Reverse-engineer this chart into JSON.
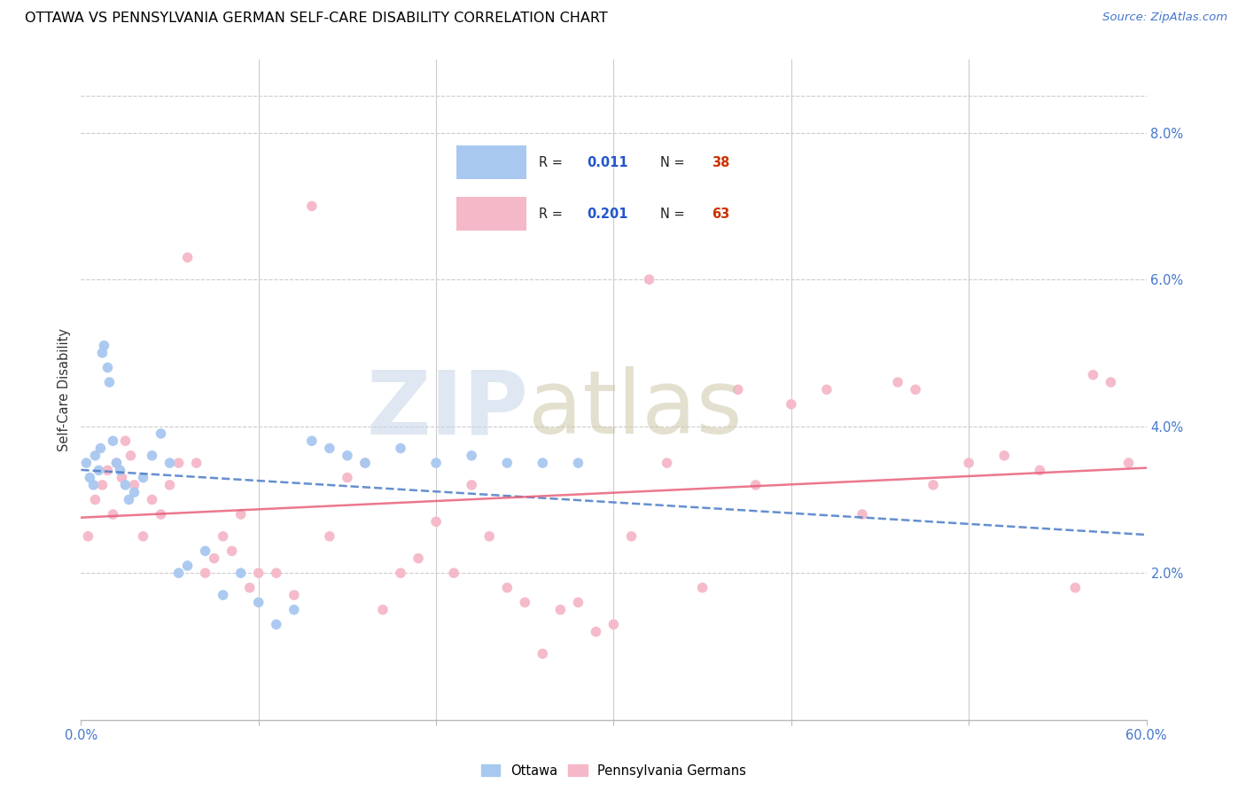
{
  "title": "OTTAWA VS PENNSYLVANIA GERMAN SELF-CARE DISABILITY CORRELATION CHART",
  "source": "Source: ZipAtlas.com",
  "ylabel": "Self-Care Disability",
  "ottawa_color": "#a8c8f0",
  "pg_color": "#f5b8c8",
  "ottawa_line_color": "#4a7cc7",
  "pg_line_color": "#e8607a",
  "watermark_zip_color": "#c8d8ee",
  "watermark_atlas_color": "#d8d0b8",
  "xlim": [
    0,
    60
  ],
  "ylim": [
    0,
    9.0
  ],
  "ytick_positions": [
    2,
    4,
    6,
    8
  ],
  "ytick_labels": [
    "2.0%",
    "4.0%",
    "6.0%",
    "8.0%"
  ],
  "legend_R_N_color": "#2255cc",
  "legend_N_val_color": "#cc3300",
  "ottawa_x": [
    0.3,
    0.5,
    0.7,
    0.8,
    1.0,
    1.1,
    1.2,
    1.3,
    1.5,
    1.6,
    1.8,
    2.0,
    2.2,
    2.5,
    2.7,
    3.0,
    3.5,
    4.0,
    4.5,
    5.0,
    5.5,
    6.0,
    7.0,
    8.0,
    9.0,
    10.0,
    11.0,
    12.0,
    13.0,
    14.0,
    15.0,
    16.0,
    18.0,
    20.0,
    22.0,
    24.0,
    26.0,
    28.0
  ],
  "ottawa_y": [
    3.5,
    3.3,
    3.2,
    3.6,
    3.4,
    3.7,
    5.0,
    5.1,
    4.8,
    4.6,
    3.8,
    3.5,
    3.4,
    3.2,
    3.0,
    3.1,
    3.3,
    3.6,
    3.9,
    3.5,
    2.0,
    2.1,
    2.3,
    1.7,
    2.0,
    1.6,
    1.3,
    1.5,
    3.8,
    3.7,
    3.6,
    3.5,
    3.7,
    3.5,
    3.6,
    3.5,
    3.5,
    3.5
  ],
  "pg_x": [
    0.4,
    0.8,
    1.2,
    1.5,
    1.8,
    2.0,
    2.3,
    2.5,
    2.8,
    3.0,
    3.5,
    4.0,
    4.5,
    5.0,
    5.5,
    6.0,
    6.5,
    7.0,
    7.5,
    8.0,
    8.5,
    9.0,
    9.5,
    10.0,
    11.0,
    12.0,
    13.0,
    14.0,
    15.0,
    16.0,
    17.0,
    18.0,
    19.0,
    20.0,
    21.0,
    22.0,
    23.0,
    24.0,
    25.0,
    26.0,
    27.0,
    28.0,
    29.0,
    30.0,
    31.0,
    32.0,
    33.0,
    35.0,
    37.0,
    38.0,
    40.0,
    42.0,
    44.0,
    46.0,
    47.0,
    48.0,
    50.0,
    52.0,
    54.0,
    56.0,
    57.0,
    58.0,
    59.0
  ],
  "pg_y": [
    2.5,
    3.0,
    3.2,
    3.4,
    2.8,
    3.5,
    3.3,
    3.8,
    3.6,
    3.2,
    2.5,
    3.0,
    2.8,
    3.2,
    3.5,
    6.3,
    3.5,
    2.0,
    2.2,
    2.5,
    2.3,
    2.8,
    1.8,
    2.0,
    2.0,
    1.7,
    7.0,
    2.5,
    3.3,
    3.5,
    1.5,
    2.0,
    2.2,
    2.7,
    2.0,
    3.2,
    2.5,
    1.8,
    1.6,
    0.9,
    1.5,
    1.6,
    1.2,
    1.3,
    2.5,
    6.0,
    3.5,
    1.8,
    4.5,
    3.2,
    4.3,
    4.5,
    2.8,
    4.6,
    4.5,
    3.2,
    3.5,
    3.6,
    3.4,
    1.8,
    4.7,
    4.6,
    3.5
  ]
}
